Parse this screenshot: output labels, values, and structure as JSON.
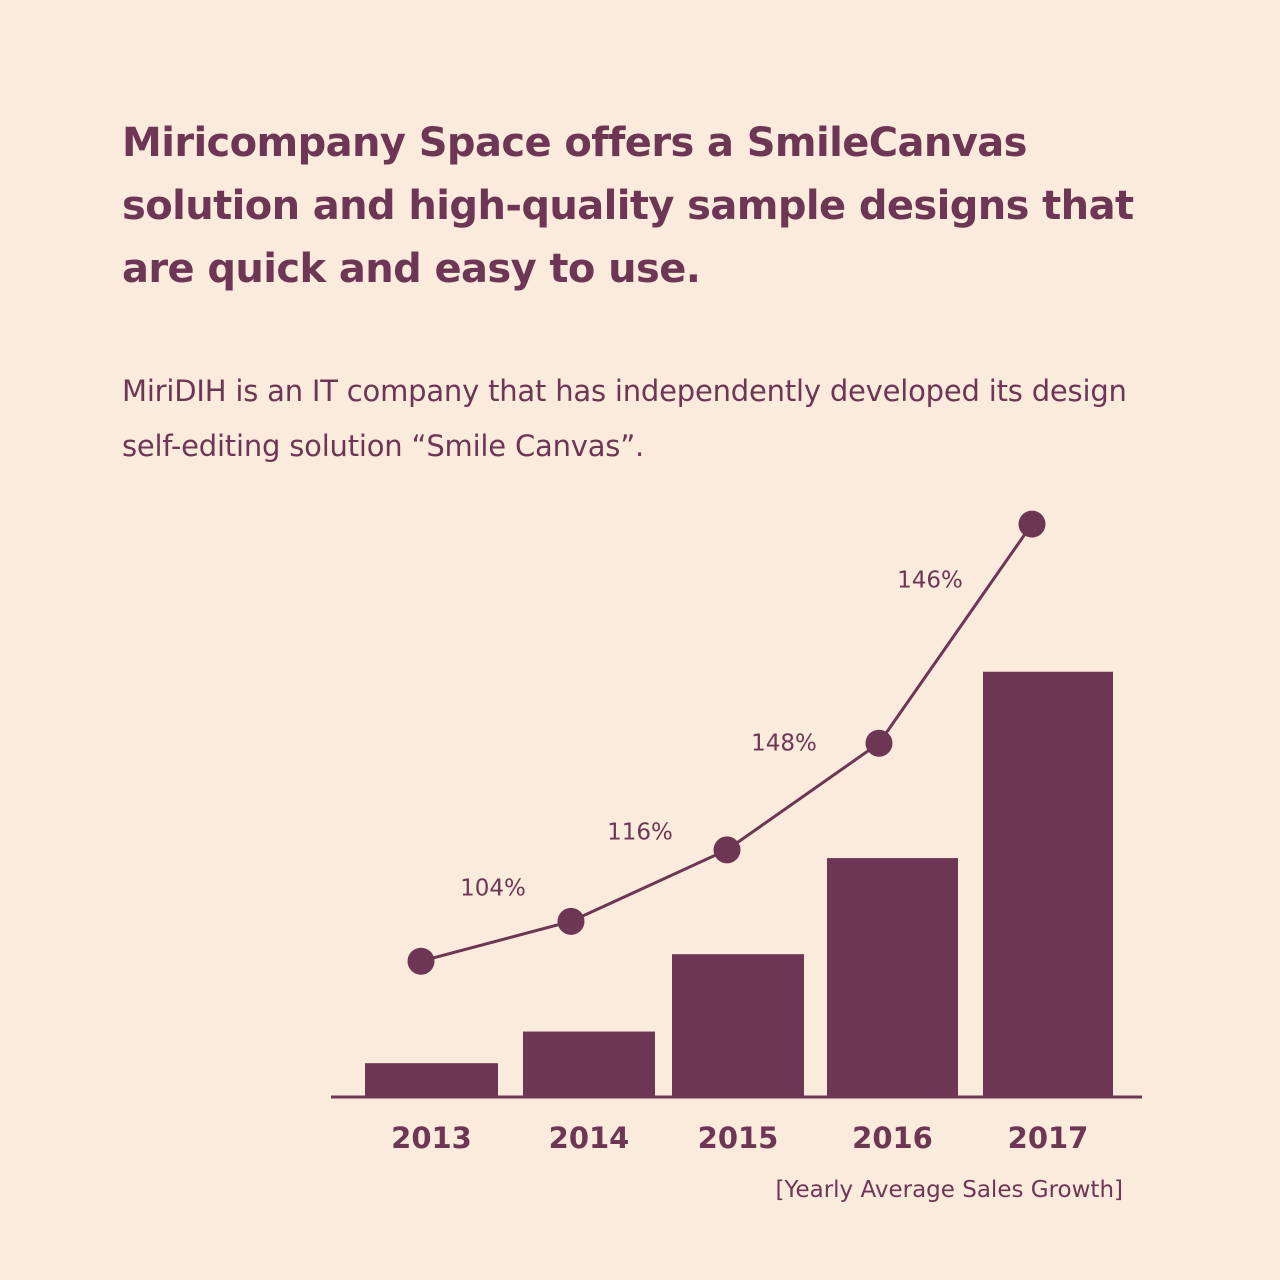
{
  "headline": "Miricompany Space offers a SmileCanvas solution and high-quality sample designs that are quick and easy to use.",
  "body": "MiriDIH is an IT company that has independently developed its design self-editing solution “Smile Canvas”.",
  "colors": {
    "background": "#fbebdc",
    "accent": "#6d3655"
  },
  "chart_data": {
    "type": "bar",
    "categories": [
      "2013",
      "2014",
      "2015",
      "2016",
      "2017"
    ],
    "values": [
      28,
      55,
      121,
      203,
      362
    ],
    "line_values": [
      115,
      149,
      210,
      301,
      488
    ],
    "growth_labels": [
      "104%",
      "116%",
      "148%",
      "146%"
    ],
    "caption": "[Yearly Average Sales Growth]",
    "title": "",
    "xlabel": "",
    "ylabel": "",
    "ylim": [
      0,
      500
    ],
    "grid": false
  }
}
